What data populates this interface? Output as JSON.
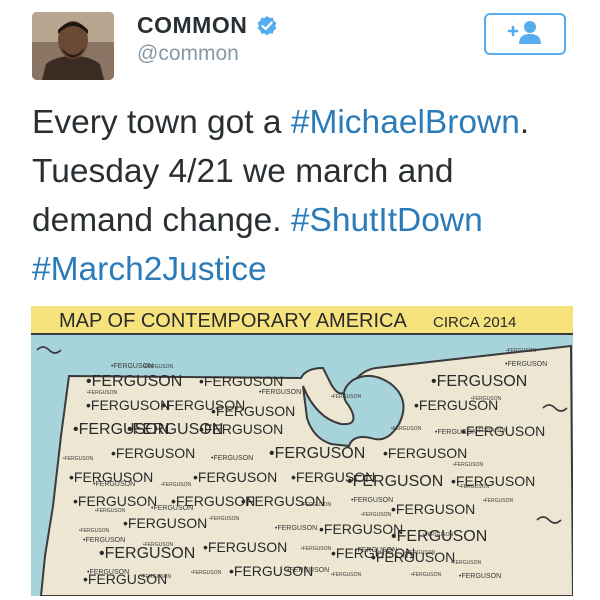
{
  "tweet": {
    "author_name": "COMMON",
    "author_handle": "@common",
    "text_lines": [
      [
        {
          "t": "Every town got a ",
          "tag": false
        },
        {
          "t": "#MichaelBrown",
          "tag": true
        },
        {
          "t": ".",
          "tag": false
        }
      ],
      [
        {
          "t": "Tuesday 4/21 we march and",
          "tag": false
        }
      ],
      [
        {
          "t": "demand change. ",
          "tag": false
        },
        {
          "t": "#ShutItDown",
          "tag": true
        }
      ],
      [
        {
          "t": "#March2Justice",
          "tag": true
        }
      ]
    ],
    "follow_icon": "follow-user-plus-icon",
    "verified_icon": "verified-badge-icon"
  },
  "map": {
    "title_main": "MAP OF CONTEMPORARY AMERICA",
    "title_suffix": "CIRCA 2014",
    "label_word": "FERGUSON",
    "large_count": 32,
    "small_count": 40
  },
  "colors": {
    "hashtag": "#2b7bb9",
    "follow_border": "#55acee",
    "map_title_bg": "#f6e37e",
    "map_water": "#a7d3db",
    "map_land": "#ece6d2"
  }
}
